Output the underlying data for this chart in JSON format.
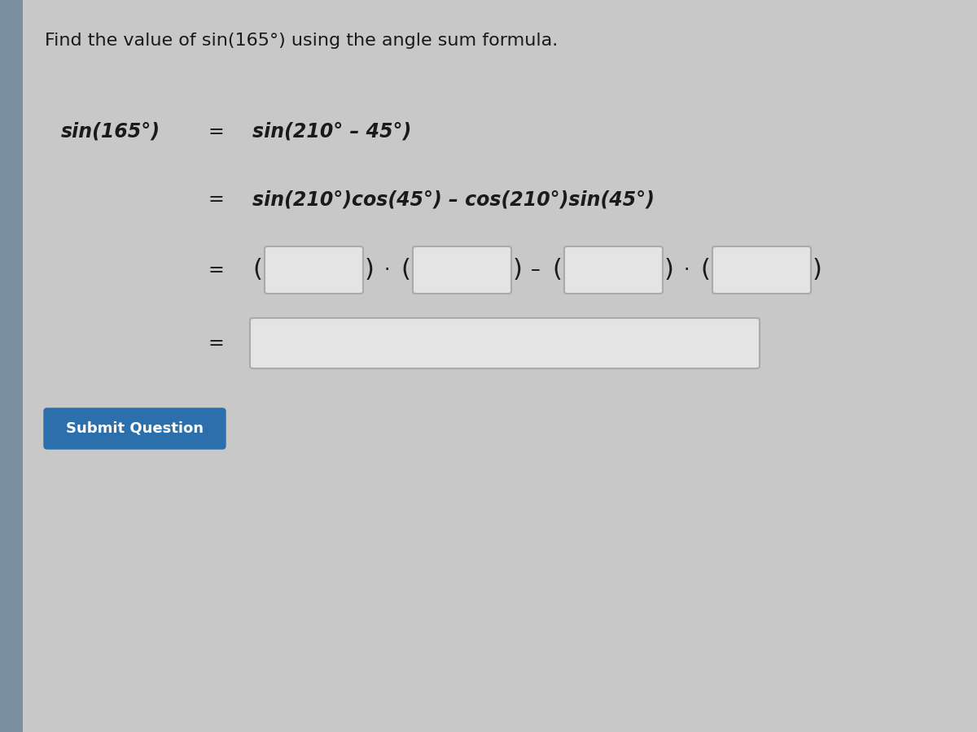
{
  "title": "Find the value of sin(165°) using the angle sum formula.",
  "bg_color": "#c8c8c8",
  "left_panel_color": "#8899aa",
  "content_bg": "#cccccc",
  "line1_left": "sin(165°)",
  "line1_eq": "=",
  "line1_right": "sin(210° – 45°)",
  "line2_eq": "=",
  "line2_right": "sin(210°)cos(45°) – cos(210°)sin(45°)",
  "line3_eq": "=",
  "line4_eq": "=",
  "button_text": "Submit Question",
  "button_color": "#2c6fad",
  "button_text_color": "#ffffff",
  "text_color": "#1a1a1a",
  "box_fill": "#e8e8e8",
  "box_border": "#999999",
  "title_fontsize": 16,
  "math_fontsize": 17
}
